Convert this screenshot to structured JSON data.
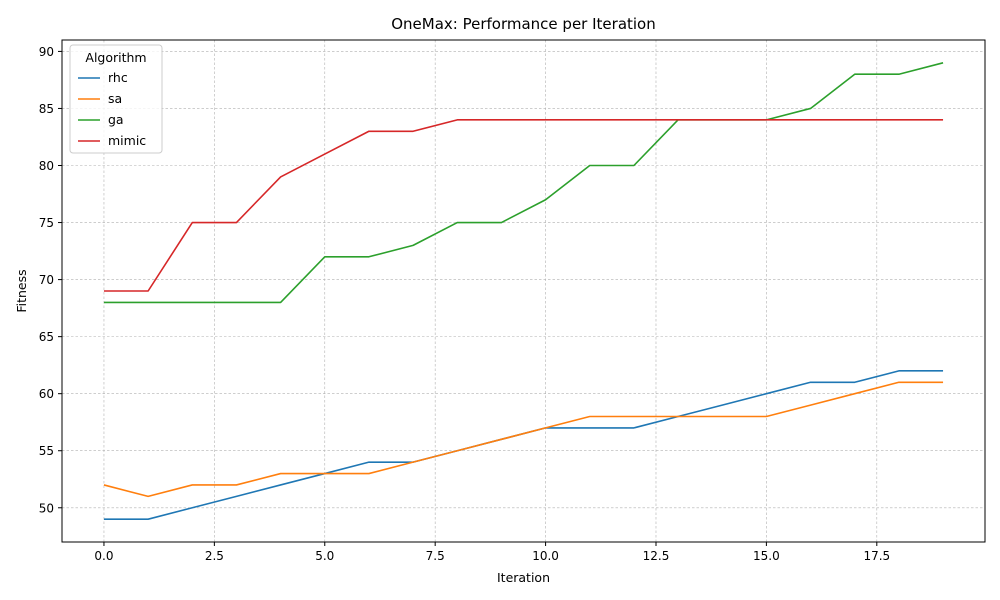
{
  "chart_data": {
    "type": "line",
    "title": "OneMax: Performance per Iteration",
    "xlabel": "Iteration",
    "ylabel": "Fitness",
    "xlim": [
      -0.95,
      19.95
    ],
    "ylim": [
      47,
      91
    ],
    "xticks": [
      0.0,
      2.5,
      5.0,
      7.5,
      10.0,
      12.5,
      15.0,
      17.5
    ],
    "xtick_labels": [
      "0.0",
      "2.5",
      "5.0",
      "7.5",
      "10.0",
      "12.5",
      "15.0",
      "17.5"
    ],
    "yticks": [
      50,
      55,
      60,
      65,
      70,
      75,
      80,
      85,
      90
    ],
    "ytick_labels": [
      "50",
      "55",
      "60",
      "65",
      "70",
      "75",
      "80",
      "85",
      "90"
    ],
    "grid": true,
    "legend_title": "Algorithm",
    "legend_position": "top-left",
    "x": [
      0,
      1,
      2,
      3,
      4,
      5,
      6,
      7,
      8,
      9,
      10,
      11,
      12,
      13,
      14,
      15,
      16,
      17,
      18,
      19
    ],
    "series": [
      {
        "name": "rhc",
        "color": "#1f77b4",
        "values": [
          49,
          49,
          50,
          51,
          52,
          53,
          54,
          54,
          55,
          56,
          57,
          57,
          57,
          58,
          59,
          60,
          61,
          61,
          62,
          62
        ]
      },
      {
        "name": "sa",
        "color": "#ff7f0e",
        "values": [
          52,
          51,
          52,
          52,
          53,
          53,
          53,
          54,
          55,
          56,
          57,
          58,
          58,
          58,
          58,
          58,
          59,
          60,
          61,
          61
        ]
      },
      {
        "name": "ga",
        "color": "#2ca02c",
        "values": [
          68,
          68,
          68,
          68,
          68,
          72,
          72,
          73,
          75,
          75,
          77,
          80,
          80,
          84,
          84,
          84,
          85,
          88,
          88,
          89
        ]
      },
      {
        "name": "mimic",
        "color": "#d62728",
        "values": [
          69,
          69,
          75,
          75,
          79,
          81,
          83,
          83,
          84,
          84,
          84,
          84,
          84,
          84,
          84,
          84,
          84,
          84,
          84,
          84
        ]
      }
    ]
  }
}
